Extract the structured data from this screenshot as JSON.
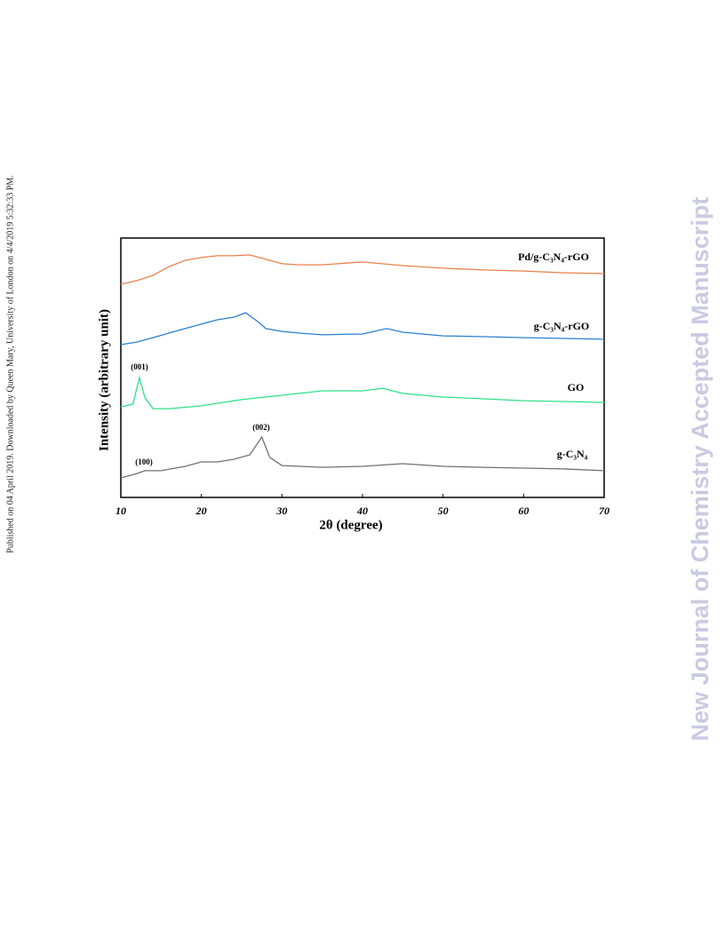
{
  "side_note": "Published on 04 April 2019. Downloaded by Queen Mary, University of London on 4/4/2019 5:32:33 PM.",
  "watermark": "New Journal of Chemistry Accepted Manuscript",
  "chart_data": {
    "type": "line",
    "xlabel": "2θ (degree)",
    "ylabel": "Intensity (arbitrary unit)",
    "xlim": [
      10,
      70
    ],
    "xticks": [
      10,
      20,
      30,
      40,
      50,
      60,
      70
    ],
    "ylim": [
      0,
      100
    ],
    "annotations": [
      "(001)",
      "(002)",
      "(100)"
    ],
    "series": [
      {
        "name": "Pd/g-C₃N₄-rGO",
        "color": "#e8824a",
        "x": [
          10,
          12,
          14,
          16,
          18,
          20,
          22,
          24,
          26,
          28,
          30,
          32,
          35,
          40,
          45,
          50,
          55,
          60,
          65,
          70
        ],
        "values": [
          82.2,
          83.6,
          85.6,
          89.0,
          91.4,
          92.5,
          93.2,
          93.2,
          93.5,
          91.8,
          90.1,
          89.7,
          89.7,
          90.8,
          89.4,
          88.4,
          87.7,
          87.3,
          86.6,
          86.3
        ]
      },
      {
        "name": "g-C₃N₄-rGO",
        "color": "#2a7fd0",
        "x": [
          10,
          12,
          14,
          16,
          18,
          20,
          22,
          24,
          25.5,
          27,
          28,
          30,
          32,
          35,
          40,
          43,
          45,
          50,
          55,
          60,
          65,
          70
        ],
        "values": [
          58.9,
          59.9,
          61.6,
          63.4,
          65.1,
          66.8,
          68.5,
          69.5,
          71.2,
          67.8,
          65.1,
          64.0,
          63.4,
          62.7,
          63.0,
          65.1,
          63.7,
          62.3,
          62.0,
          61.6,
          61.3,
          61.0
        ]
      },
      {
        "name": "GO",
        "color": "#2fe08a",
        "x": [
          10,
          11.5,
          12.3,
          13,
          14,
          16,
          20,
          25,
          30,
          35,
          40,
          42.5,
          45,
          50,
          55,
          60,
          65,
          70
        ],
        "values": [
          34.9,
          36.0,
          46.2,
          38.4,
          34.2,
          34.2,
          35.3,
          37.7,
          39.4,
          41.1,
          41.1,
          42.1,
          40.1,
          38.7,
          38.0,
          37.3,
          37.0,
          36.6
        ]
      },
      {
        "name": "g-C₃N₄",
        "color": "#707070",
        "x": [
          10,
          12,
          13,
          15,
          18,
          20,
          22,
          24,
          26,
          27.5,
          28.5,
          30,
          35,
          40,
          45,
          50,
          55,
          60,
          65,
          70
        ],
        "values": [
          7.5,
          9.2,
          10.3,
          10.3,
          12.0,
          13.7,
          13.7,
          14.7,
          16.4,
          23.3,
          15.4,
          12.3,
          11.6,
          12.0,
          13.0,
          12.0,
          11.6,
          11.3,
          11.0,
          10.3
        ]
      }
    ]
  }
}
